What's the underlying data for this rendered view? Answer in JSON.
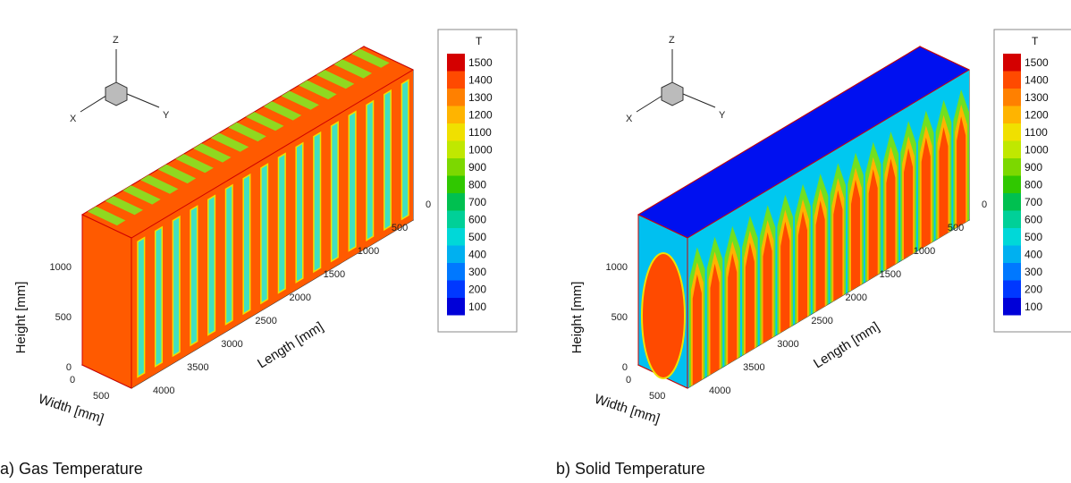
{
  "panels": [
    {
      "caption": "a) Gas Temperature",
      "axes": {
        "z": "Z",
        "x": "X",
        "y": "Y"
      },
      "height_label": "Height [mm]",
      "height_ticks": [
        "0",
        "500",
        "1000"
      ],
      "width_label": "Width [mm]",
      "width_ticks": [
        "0",
        "500"
      ],
      "length_label": "Length [mm]",
      "length_ticks": [
        "0",
        "500",
        "1000",
        "1500",
        "2000",
        "2500",
        "3000",
        "3500",
        "4000"
      ],
      "legend": {
        "title": "T",
        "levels": [
          "1500",
          "1400",
          "1300",
          "1200",
          "1100",
          "1000",
          "900",
          "800",
          "700",
          "600",
          "500",
          "400",
          "300",
          "200",
          "100"
        ]
      }
    },
    {
      "caption": "b) Solid Temperature",
      "axes": {
        "z": "Z",
        "x": "X",
        "y": "Y"
      },
      "height_label": "Height [mm]",
      "height_ticks": [
        "0",
        "500",
        "1000"
      ],
      "width_label": "Width [mm]",
      "width_ticks": [
        "0",
        "500"
      ],
      "length_label": "Length [mm]",
      "length_ticks": [
        "0",
        "500",
        "1000",
        "1500",
        "2000",
        "2500",
        "3000",
        "3500",
        "4000"
      ],
      "legend": {
        "title": "T",
        "levels": [
          "1500",
          "1400",
          "1300",
          "1200",
          "1100",
          "1000",
          "900",
          "800",
          "700",
          "600",
          "500",
          "400",
          "300",
          "200",
          "100"
        ]
      }
    }
  ]
}
